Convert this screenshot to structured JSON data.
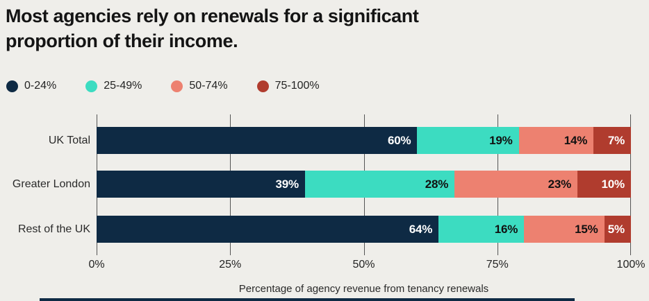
{
  "title": {
    "line1": "Most agencies rely on renewals for a significant",
    "line2": "proportion of their income.",
    "full": "Most agencies rely on renewals for a significant proportion of their income."
  },
  "legend": {
    "items": [
      {
        "label": "0-24%",
        "color": "#0e2a44"
      },
      {
        "label": "25-49%",
        "color": "#3cdcc1"
      },
      {
        "label": "50-74%",
        "color": "#ed8170"
      },
      {
        "label": "75-100%",
        "color": "#b03c2e"
      }
    ]
  },
  "chart_data": {
    "type": "bar",
    "orientation": "horizontal",
    "stacked": true,
    "categories": [
      "UK Total",
      "Greater London",
      "Rest of the UK"
    ],
    "series": [
      {
        "name": "0-24%",
        "color": "#0e2a44",
        "label_color": "#ffffff",
        "values": [
          60,
          39,
          64
        ]
      },
      {
        "name": "25-49%",
        "color": "#3cdcc1",
        "label_color": "#111111",
        "values": [
          19,
          28,
          16
        ]
      },
      {
        "name": "50-74%",
        "color": "#ed8170",
        "label_color": "#111111",
        "values": [
          14,
          23,
          15
        ]
      },
      {
        "name": "75-100%",
        "color": "#b03c2e",
        "label_color": "#ffffff",
        "values": [
          7,
          10,
          5
        ]
      }
    ],
    "value_suffix": "%",
    "xlabel": "Percentage of agency revenue from tenancy renewals",
    "x_ticks": [
      {
        "label": "0%",
        "value": 0
      },
      {
        "label": "25%",
        "value": 25
      },
      {
        "label": "50%",
        "value": 50
      },
      {
        "label": "75%",
        "value": 75
      },
      {
        "label": "100%",
        "value": 100
      }
    ],
    "xlim": [
      0,
      100
    ],
    "grid": true,
    "legend_position": "top-left"
  },
  "colors": {
    "background": "#efeeea",
    "title_text": "#141414",
    "axis_text": "#2a2a2a",
    "gridline": "#545454",
    "bottom_strip": "#0e2a44"
  }
}
